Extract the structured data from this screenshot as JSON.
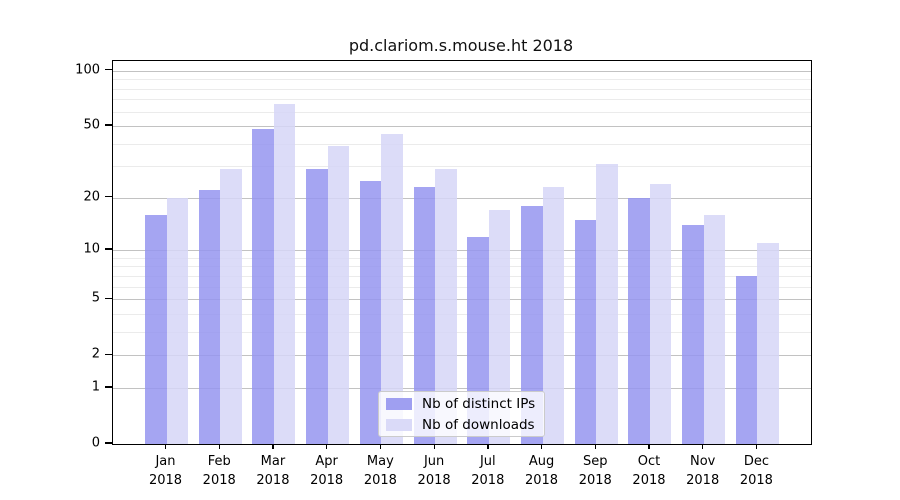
{
  "chart_data": {
    "type": "bar",
    "title": "pd.clariom.s.mouse.ht 2018",
    "xlabel": "",
    "ylabel": "",
    "categories": [
      "Jan 2018",
      "Feb 2018",
      "Mar 2018",
      "Apr 2018",
      "May 2018",
      "Jun 2018",
      "Jul 2018",
      "Aug 2018",
      "Sep 2018",
      "Oct 2018",
      "Nov 2018",
      "Dec 2018"
    ],
    "series": [
      {
        "name": "Nb of distinct IPs",
        "color": "#9595f0",
        "values": [
          16,
          22,
          48,
          29,
          25,
          23,
          12,
          18,
          15,
          20,
          14,
          7
        ]
      },
      {
        "name": "Nb of downloads",
        "color": "#d6d6f7",
        "values": [
          20,
          29,
          66,
          39,
          45,
          29,
          17,
          23,
          31,
          24,
          16,
          11
        ]
      }
    ],
    "yscale": "log1p",
    "ylim": [
      0,
      113
    ],
    "y_major_ticks": [
      0,
      1,
      2,
      5,
      10,
      20,
      50,
      100
    ],
    "y_minor_gridlines": [
      3,
      4,
      6,
      7,
      8,
      9,
      30,
      40,
      60,
      70,
      80,
      90
    ],
    "grid": "horizontal, major and minor, drawn under semi-transparent bars",
    "legend": {
      "position": "inside lower center"
    },
    "colors": {
      "background": "#ffffff",
      "axis": "#000000",
      "major_grid": "#c2c2c2",
      "minor_grid": "#ebebeb",
      "legend_border": "#cbcbcb"
    }
  }
}
